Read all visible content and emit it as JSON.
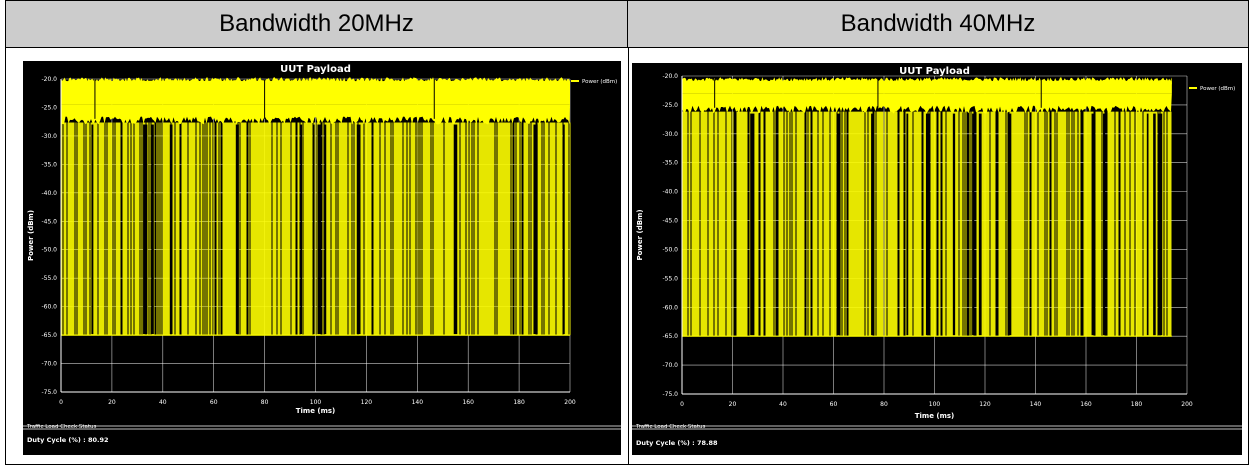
{
  "table": {
    "headers": [
      "Bandwidth 20MHz",
      "Bandwidth 40MHz"
    ]
  },
  "panels": [
    {
      "status_title": "Traffic Load Check Status",
      "duty_cycle_text": "Duty Cycle (%) : 80.92"
    },
    {
      "status_title": "Traffic Load Check Status",
      "duty_cycle_text": "Duty Cycle (%) : 78.88"
    }
  ],
  "colors": {
    "trace": "#ffff00",
    "background": "#000000",
    "grid": "#ffffff"
  },
  "chart_data": [
    {
      "type": "line",
      "title": "UUT Payload",
      "xlabel": "Time (ms)",
      "ylabel": "Power (dBm)",
      "xlim": [
        0,
        200
      ],
      "ylim": [
        -75,
        -20
      ],
      "x_ticks": [
        0,
        20,
        40,
        60,
        80,
        100,
        120,
        140,
        160,
        180,
        200
      ],
      "y_ticks": [
        "-20.0",
        "-25.0",
        "-30.0",
        "-35.0",
        "-40.0",
        "-45.0",
        "-50.0",
        "-55.0",
        "-60.0",
        "-65.0",
        "-70.0",
        "-75.0"
      ],
      "legend": "top-right",
      "grid": true,
      "series": [
        {
          "name": "Power (dBm)",
          "on_level": [
            -28,
            -21
          ],
          "off_level": -65,
          "x_end": 200,
          "duty_cycle": 80.92
        }
      ]
    },
    {
      "type": "line",
      "title": "UUT Payload",
      "xlabel": "Time (ms)",
      "ylabel": "Power (dBm)",
      "xlim": [
        0,
        200
      ],
      "ylim": [
        -75,
        -20
      ],
      "x_ticks": [
        0,
        20,
        40,
        60,
        80,
        100,
        120,
        140,
        160,
        180,
        200
      ],
      "y_ticks": [
        "-20.0",
        "-25.0",
        "-30.0",
        "-35.0",
        "-40.0",
        "-45.0",
        "-50.0",
        "-55.0",
        "-60.0",
        "-65.0",
        "-70.0",
        "-75.0"
      ],
      "legend": "top-right",
      "grid": true,
      "series": [
        {
          "name": "Power (dBm)",
          "on_level": [
            -26.5,
            -21.5
          ],
          "off_level": -65,
          "x_end": 194,
          "duty_cycle": 78.88
        }
      ]
    }
  ]
}
